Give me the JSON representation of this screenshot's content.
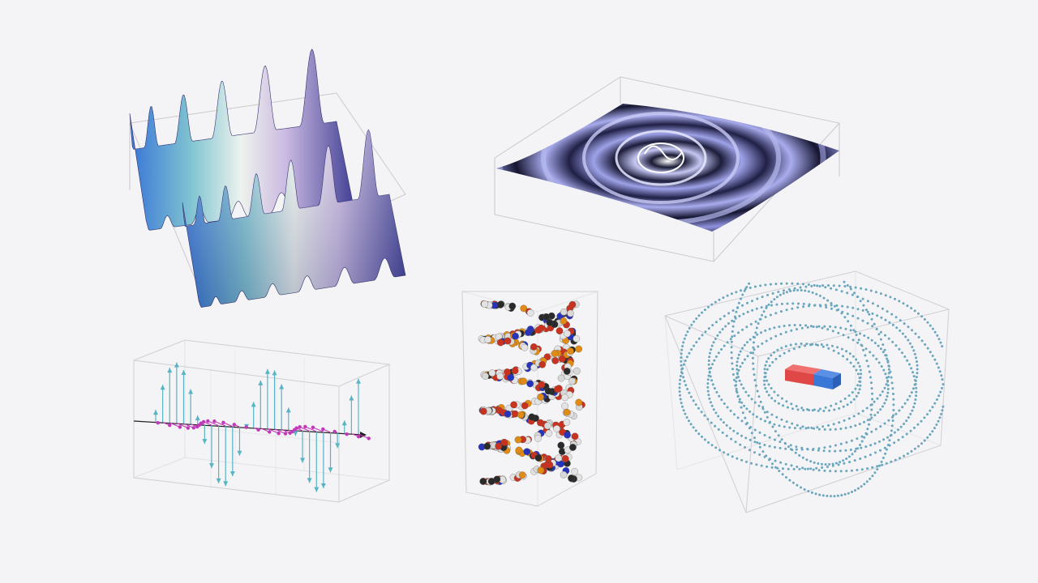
{
  "scene": {
    "background": "#f4f4f6",
    "visualizations": [
      {
        "key": "wave",
        "name": "3d-wave-surface-plot",
        "colors": [
          "#2f6fd6",
          "#b8e0d8",
          "#ffffff",
          "#b9a2d8",
          "#3c3a92"
        ]
      },
      {
        "key": "ripple",
        "name": "3d-ripple-surface-plot",
        "colors": [
          "#1a1a35",
          "#a9acee",
          "#ffffff"
        ]
      },
      {
        "key": "em",
        "name": "3d-electromagnetic-wave-vectors",
        "colors": [
          "#56b4c4",
          "#c238b8",
          "#222222"
        ]
      },
      {
        "key": "dna",
        "name": "3d-dna-molecule-model",
        "colors": [
          "#e3e3e3",
          "#c8321e",
          "#2733b8",
          "#e08b14",
          "#2a2a2a"
        ]
      },
      {
        "key": "magnet",
        "name": "3d-bar-magnet-field-lines",
        "colors": [
          "#e04848",
          "#3a78d8",
          "#6aa6bd"
        ]
      }
    ]
  }
}
